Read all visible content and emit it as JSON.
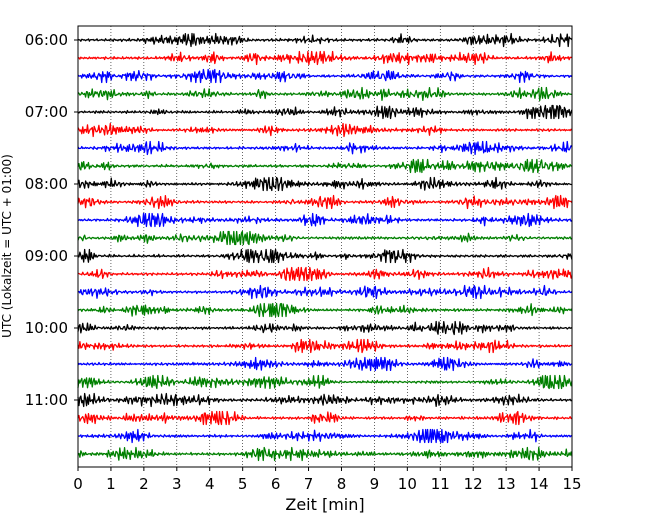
{
  "chart_data": {
    "type": "line",
    "title": "",
    "xlabel": "Zeit  [min]",
    "ylabel": "UTC (Lokalzeit = UTC + 01:00)",
    "xlim": [
      0,
      15
    ],
    "x_ticks": [
      "0",
      "1",
      "2",
      "3",
      "4",
      "5",
      "6",
      "7",
      "8",
      "9",
      "10",
      "11",
      "12",
      "13",
      "14",
      "15"
    ],
    "y_tick_labels": [
      "06:00",
      "07:00",
      "08:00",
      "09:00",
      "10:00",
      "11:00"
    ],
    "trace_interval_min": 15,
    "trace_start": "06:00",
    "trace_count": 24,
    "trace_colors": [
      "#000000",
      "#ff0000",
      "#0000ff",
      "#008000"
    ],
    "grid": "vertical dotted"
  }
}
